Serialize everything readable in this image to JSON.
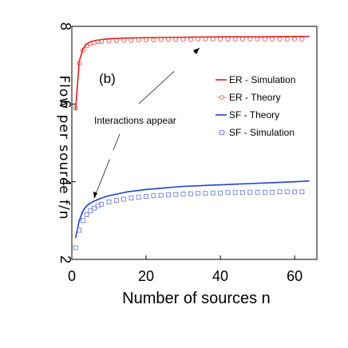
{
  "chart_data": {
    "type": "line",
    "panel_label": "(b)",
    "xlabel": "Number of sources n",
    "ylabel": "Flow per source f/n",
    "xlim": [
      0,
      66
    ],
    "ylim": [
      2,
      8
    ],
    "x_ticks": [
      "0",
      "20",
      "40",
      "60"
    ],
    "y_ticks": [
      "2",
      "4",
      "6",
      "8"
    ],
    "annotation": "Interactions appear",
    "grid": false,
    "legend_position": "top-right",
    "series": [
      {
        "name": "ER - Simulation",
        "style": "line",
        "color": "#e02020",
        "x": [
          1,
          2,
          3,
          4,
          5,
          6,
          8,
          10,
          15,
          20,
          30,
          40,
          50,
          60,
          64
        ],
        "y": [
          5.85,
          7.1,
          7.42,
          7.55,
          7.6,
          7.63,
          7.66,
          7.68,
          7.7,
          7.71,
          7.72,
          7.73,
          7.73,
          7.74,
          7.74
        ]
      },
      {
        "name": "ER - Theory",
        "style": "markers",
        "marker": "circle",
        "color": "#e04040",
        "x": [
          1,
          2,
          3,
          4,
          5,
          6,
          7,
          8,
          10,
          12,
          14,
          16,
          18,
          20,
          22,
          24,
          26,
          28,
          30,
          32,
          34,
          36,
          38,
          40,
          42,
          44,
          46,
          48,
          50,
          52,
          54,
          56,
          58,
          60,
          62
        ],
        "y": [
          5.9,
          7.05,
          7.38,
          7.5,
          7.55,
          7.58,
          7.6,
          7.61,
          7.62,
          7.63,
          7.64,
          7.64,
          7.65,
          7.65,
          7.65,
          7.66,
          7.66,
          7.66,
          7.66,
          7.66,
          7.67,
          7.67,
          7.67,
          7.67,
          7.67,
          7.67,
          7.67,
          7.67,
          7.67,
          7.67,
          7.67,
          7.67,
          7.67,
          7.67,
          7.67
        ]
      },
      {
        "name": "SF - Theory",
        "style": "line",
        "color": "#2040d0",
        "x": [
          1,
          2,
          3,
          4,
          5,
          6,
          8,
          10,
          12,
          15,
          20,
          25,
          30,
          35,
          40,
          45,
          50,
          55,
          60,
          64
        ],
        "y": [
          2.55,
          3.0,
          3.25,
          3.38,
          3.45,
          3.5,
          3.58,
          3.64,
          3.68,
          3.74,
          3.8,
          3.84,
          3.88,
          3.9,
          3.92,
          3.94,
          3.96,
          3.98,
          4.0,
          4.02
        ]
      },
      {
        "name": "SF - Simulation",
        "style": "markers",
        "marker": "square",
        "color": "#6070e0",
        "x": [
          1,
          2,
          3,
          4,
          5,
          6,
          7,
          8,
          10,
          12,
          14,
          16,
          18,
          20,
          22,
          24,
          26,
          28,
          30,
          32,
          34,
          36,
          38,
          40,
          42,
          44,
          46,
          48,
          50,
          52,
          54,
          56,
          58,
          60,
          62
        ],
        "y": [
          2.3,
          2.75,
          3.0,
          3.15,
          3.25,
          3.32,
          3.38,
          3.42,
          3.48,
          3.52,
          3.55,
          3.58,
          3.6,
          3.62,
          3.64,
          3.65,
          3.66,
          3.67,
          3.68,
          3.69,
          3.7,
          3.7,
          3.71,
          3.71,
          3.72,
          3.72,
          3.72,
          3.73,
          3.73,
          3.73,
          3.73,
          3.74,
          3.74,
          3.74,
          3.74
        ]
      }
    ]
  }
}
